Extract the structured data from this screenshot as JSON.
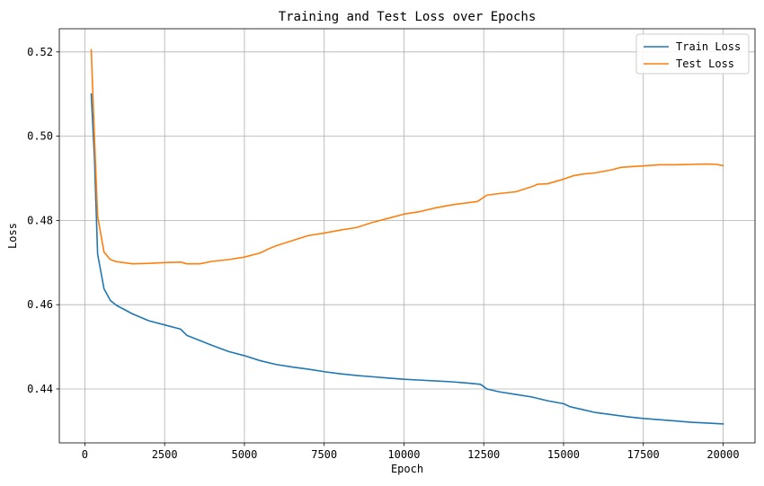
{
  "chart_data": {
    "type": "line",
    "title": "Training and Test Loss over Epochs",
    "xlabel": "Epoch",
    "ylabel": "Loss",
    "xlim": [
      -800,
      21000
    ],
    "ylim": [
      0.4272,
      0.5255
    ],
    "xticks": [
      0,
      2500,
      5000,
      7500,
      10000,
      12500,
      15000,
      17500,
      20000
    ],
    "xtick_labels": [
      "0",
      "2500",
      "5000",
      "7500",
      "10000",
      "12500",
      "15000",
      "17500",
      "20000"
    ],
    "yticks": [
      0.44,
      0.46,
      0.48,
      0.5,
      0.52
    ],
    "ytick_labels": [
      "0.44",
      "0.46",
      "0.48",
      "0.50",
      "0.52"
    ],
    "grid": true,
    "legend_position": "top-right",
    "series": [
      {
        "name": "Train Loss",
        "color": "#1f77b4",
        "x": [
          200,
          300,
          400,
          600,
          800,
          1000,
          1500,
          2000,
          2500,
          3000,
          3200,
          3600,
          4000,
          4500,
          5000,
          5500,
          6000,
          6500,
          7000,
          7500,
          8000,
          8500,
          9000,
          9500,
          10000,
          10500,
          11000,
          11500,
          12000,
          12400,
          12600,
          13000,
          13500,
          14000,
          14500,
          15000,
          15200,
          15600,
          16000,
          16500,
          17000,
          17500,
          18000,
          18500,
          19000,
          19500,
          20000
        ],
        "values": [
          0.51,
          0.495,
          0.472,
          0.4638,
          0.461,
          0.4598,
          0.4578,
          0.4562,
          0.4552,
          0.4542,
          0.4527,
          0.4515,
          0.4503,
          0.4489,
          0.4479,
          0.4467,
          0.4458,
          0.4452,
          0.4447,
          0.4441,
          0.4436,
          0.4432,
          0.4429,
          0.4426,
          0.4423,
          0.4421,
          0.4419,
          0.4417,
          0.4414,
          0.4411,
          0.44,
          0.4393,
          0.4387,
          0.4381,
          0.4372,
          0.4365,
          0.4358,
          0.4351,
          0.4344,
          0.4339,
          0.4334,
          0.433,
          0.4327,
          0.4324,
          0.4321,
          0.4319,
          0.4317
        ]
      },
      {
        "name": "Test Loss",
        "color": "#ff7f0e",
        "x": [
          200,
          300,
          400,
          600,
          800,
          1000,
          1500,
          2000,
          2500,
          3000,
          3200,
          3600,
          4000,
          4500,
          5000,
          5500,
          5800,
          6000,
          6500,
          7000,
          7500,
          8000,
          8500,
          9000,
          9500,
          10000,
          10500,
          11000,
          11500,
          12000,
          12300,
          12600,
          13000,
          13500,
          14000,
          14200,
          14500,
          15000,
          15300,
          15600,
          16000,
          16500,
          16800,
          17200,
          17600,
          18000,
          18500,
          19000,
          19500,
          19800,
          20000
        ],
        "values": [
          0.5205,
          0.5,
          0.481,
          0.4725,
          0.4707,
          0.4702,
          0.4697,
          0.4698,
          0.47,
          0.4701,
          0.4697,
          0.4697,
          0.4703,
          0.4707,
          0.4713,
          0.4723,
          0.4734,
          0.474,
          0.4752,
          0.4764,
          0.477,
          0.4777,
          0.4783,
          0.4795,
          0.4805,
          0.4815,
          0.4821,
          0.483,
          0.4837,
          0.4842,
          0.4845,
          0.486,
          0.4864,
          0.4868,
          0.488,
          0.4886,
          0.4887,
          0.4898,
          0.4906,
          0.491,
          0.4913,
          0.492,
          0.4926,
          0.4928,
          0.493,
          0.4932,
          0.4932,
          0.4933,
          0.4934,
          0.4933,
          0.493
        ]
      }
    ]
  }
}
